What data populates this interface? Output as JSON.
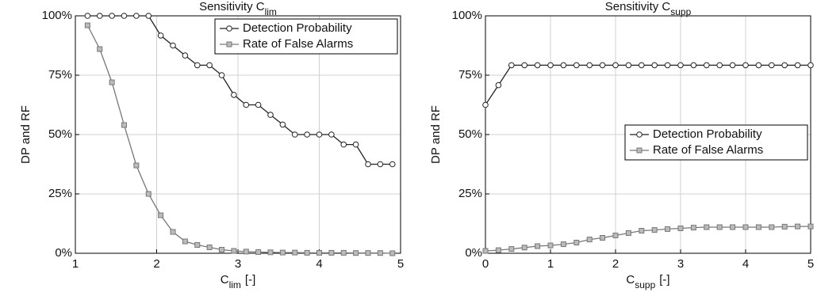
{
  "chart_data": [
    {
      "type": "line",
      "title": {
        "main": "Sensitivity C",
        "sub": "lim"
      },
      "xlabel": {
        "main": "C",
        "sub": "lim",
        "unit": "[-]"
      },
      "ylabel": "DP and RF",
      "x": [
        1.15,
        1.3,
        1.45,
        1.6,
        1.75,
        1.9,
        2.05,
        2.2,
        2.35,
        2.5,
        2.65,
        2.8,
        2.95,
        3.1,
        3.25,
        3.4,
        3.55,
        3.7,
        3.85,
        4.0,
        4.15,
        4.3,
        4.45,
        4.6,
        4.75,
        4.9
      ],
      "series": [
        {
          "name": "Detection Probability",
          "color": "#222222",
          "marker": "circle",
          "values": [
            100,
            100,
            100,
            100,
            100,
            100,
            91.7,
            87.5,
            83.3,
            79.2,
            79.2,
            75,
            66.7,
            62.5,
            62.5,
            58.3,
            54.2,
            50,
            50,
            50,
            50,
            45.8,
            45.8,
            37.5,
            37.5,
            37.5
          ]
        },
        {
          "name": "Rate of False Alarms",
          "color": "#777777",
          "marker": "square",
          "values": [
            96,
            86,
            72,
            54,
            37,
            25,
            16,
            9,
            5,
            3.5,
            2.5,
            1.5,
            1,
            0.7,
            0.5,
            0.4,
            0.3,
            0.3,
            0.2,
            0.2,
            0.2,
            0.2,
            0.1,
            0.1,
            0.1,
            0
          ]
        }
      ],
      "xlim": [
        1,
        5
      ],
      "xticks": [
        1,
        2,
        3,
        4,
        5
      ],
      "ylim": [
        0,
        100
      ],
      "yticks": [
        {
          "value": 0,
          "label": "0%"
        },
        {
          "value": 25,
          "label": "25%"
        },
        {
          "value": 50,
          "label": "50%"
        },
        {
          "value": 75,
          "label": "75%"
        },
        {
          "value": 100,
          "label": "100%"
        }
      ],
      "grid": true,
      "legend": "upper right"
    },
    {
      "type": "line",
      "title": {
        "main": "Sensitivity C",
        "sub": "supp"
      },
      "xlabel": {
        "main": "C",
        "sub": "supp",
        "unit": "[-]"
      },
      "ylabel": "DP and RF",
      "x": [
        0,
        0.2,
        0.4,
        0.6,
        0.8,
        1.0,
        1.2,
        1.4,
        1.6,
        1.8,
        2.0,
        2.2,
        2.4,
        2.6,
        2.8,
        3.0,
        3.2,
        3.4,
        3.6,
        3.8,
        4.0,
        4.2,
        4.4,
        4.6,
        4.8,
        5.0
      ],
      "series": [
        {
          "name": "Detection Probability",
          "color": "#222222",
          "marker": "circle",
          "values": [
            62.5,
            70.8,
            79.2,
            79.2,
            79.2,
            79.2,
            79.2,
            79.2,
            79.2,
            79.2,
            79.2,
            79.2,
            79.2,
            79.2,
            79.2,
            79.2,
            79.2,
            79.2,
            79.2,
            79.2,
            79.2,
            79.2,
            79.2,
            79.2,
            79.2,
            79.2
          ]
        },
        {
          "name": "Rate of False Alarms",
          "color": "#777777",
          "marker": "square",
          "values": [
            1,
            1.3,
            1.8,
            2.4,
            3,
            3.3,
            3.8,
            4.5,
            5.8,
            6.5,
            7.5,
            8.5,
            9.5,
            9.8,
            10.2,
            10.5,
            10.8,
            11,
            11,
            11,
            11,
            11,
            11,
            11.2,
            11.3,
            11.3
          ]
        }
      ],
      "xlim": [
        0,
        5
      ],
      "xticks": [
        0,
        1,
        2,
        3,
        4,
        5
      ],
      "ylim": [
        0,
        100
      ],
      "yticks": [
        {
          "value": 0,
          "label": "0%"
        },
        {
          "value": 25,
          "label": "25%"
        },
        {
          "value": 50,
          "label": "50%"
        },
        {
          "value": 75,
          "label": "75%"
        },
        {
          "value": 100,
          "label": "100%"
        }
      ],
      "grid": true,
      "legend": "center right"
    }
  ]
}
